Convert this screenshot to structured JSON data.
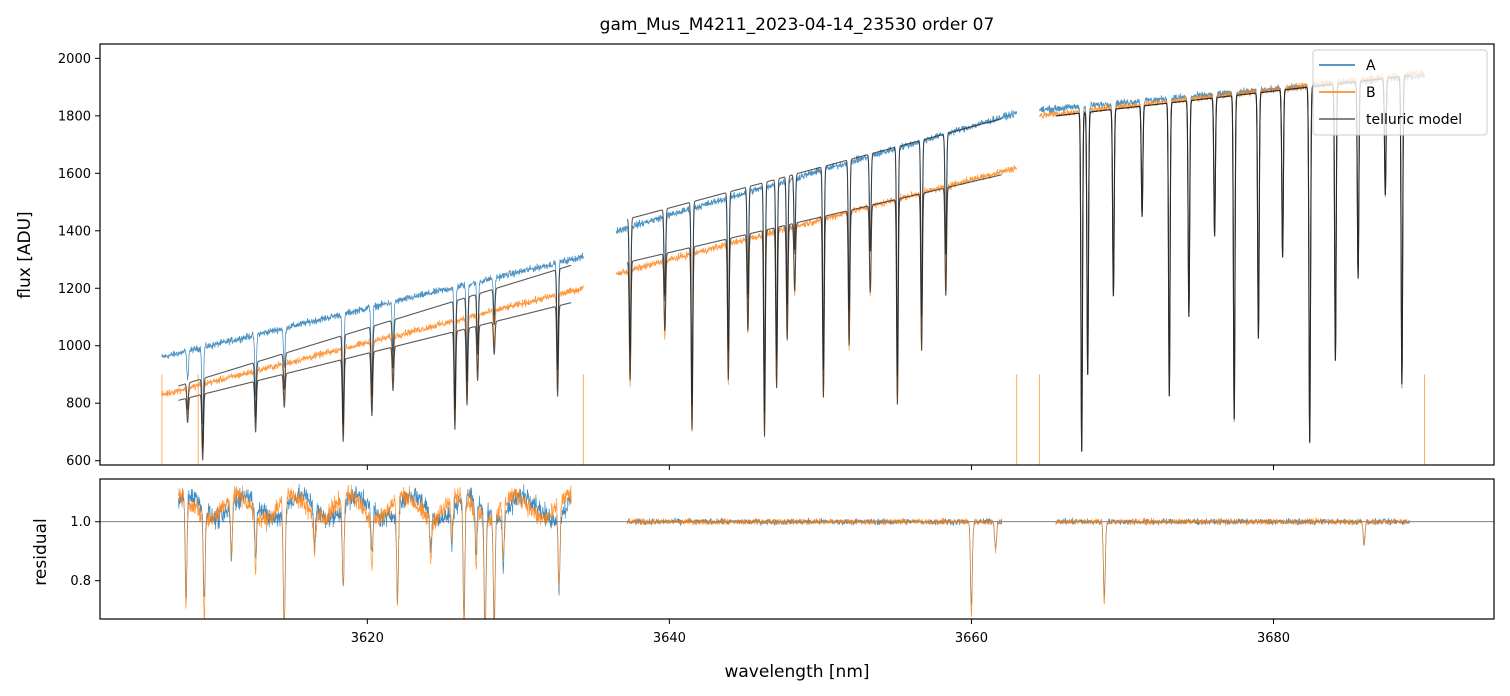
{
  "chart_data": [
    {
      "type": "line",
      "title": "gam_Mus_M4211_2023-04-14_23530  order 07",
      "xlabel": "",
      "ylabel": "flux [ADU]",
      "xlim": [
        3602.3,
        3694.6
      ],
      "ylim": [
        585,
        2050
      ],
      "yticks": [
        600,
        800,
        1000,
        1200,
        1400,
        1600,
        1800,
        2000
      ],
      "yticklabels": [
        "600",
        "800",
        "1000",
        "1200",
        "1400",
        "1600",
        "1800",
        "2000"
      ],
      "xticks": [
        3620,
        3640,
        3660,
        3680
      ],
      "legend": {
        "location": "top-right",
        "entries": [
          {
            "name": "A",
            "color": "#1f77b4"
          },
          {
            "name": "B",
            "color": "#ff7f0e"
          },
          {
            "name": "telluric model",
            "color": "#333333"
          }
        ]
      },
      "segments": [
        {
          "x": [
            3606.4,
            3634.3
          ],
          "A": [
            960,
            1310
          ],
          "B": [
            830,
            1200
          ],
          "model_A": [
            860,
            1280
          ],
          "model_B": [
            810,
            1150
          ],
          "model_range": [
            3607.5,
            3633.5
          ]
        },
        {
          "x": [
            3636.5,
            3663.0
          ],
          "A": [
            1400,
            1810
          ],
          "B": [
            1250,
            1620
          ],
          "model_A": [
            1440,
            1790
          ],
          "model_B": [
            1290,
            1595
          ],
          "model_range": [
            3637.2,
            3662.0
          ]
        },
        {
          "x": [
            3664.5,
            3690.0
          ],
          "A": [
            1820,
            1940
          ],
          "B": [
            1800,
            1950
          ],
          "model_A": [
            1800,
            1940
          ],
          "model_B": [
            1800,
            1940
          ],
          "model_range": [
            3665.6,
            3689.0
          ]
        }
      ],
      "absorption_lines_nm": [
        3608.1,
        3609.1,
        3612.6,
        3614.5,
        3618.4,
        3620.3,
        3621.7,
        3625.8,
        3626.6,
        3627.3,
        3628.4,
        3632.6,
        3637.4,
        3639.7,
        3641.5,
        3643.9,
        3645.2,
        3646.3,
        3647.1,
        3647.8,
        3648.3,
        3650.2,
        3651.9,
        3653.3,
        3655.1,
        3656.7,
        3658.3,
        3667.3,
        3667.7,
        3669.4,
        3671.3,
        3673.1,
        3674.4,
        3676.1,
        3677.4,
        3679.0,
        3680.6,
        3682.4,
        3684.1,
        3685.6,
        3687.4,
        3688.5
      ]
    },
    {
      "type": "line",
      "title": "",
      "xlabel": "wavelength [nm]",
      "ylabel": "residual",
      "xlim": [
        3602.3,
        3694.6
      ],
      "ylim": [
        0.67,
        1.145
      ],
      "yticks": [
        0.8,
        1.0
      ],
      "yticklabels": [
        "0.8",
        "1.0"
      ],
      "xticks": [
        3620,
        3640,
        3660,
        3680
      ],
      "xticklabels": [
        "3620",
        "3640",
        "3660",
        "3680"
      ],
      "reference_line": 1.0,
      "segments": [
        {
          "x": [
            3607.5,
            3633.5
          ],
          "level": 1.05,
          "noise": 0.05
        },
        {
          "x": [
            3637.2,
            3662.0
          ],
          "level": 1.0,
          "noise": 0.015
        },
        {
          "x": [
            3665.6,
            3689.0
          ],
          "level": 1.0,
          "noise": 0.015
        }
      ],
      "dips": [
        {
          "x": 3608.0,
          "depth": 0.37
        },
        {
          "x": 3609.2,
          "depth": 0.35
        },
        {
          "x": 3611.0,
          "depth": 0.2
        },
        {
          "x": 3612.6,
          "depth": 0.2
        },
        {
          "x": 3614.5,
          "depth": 0.45
        },
        {
          "x": 3616.5,
          "depth": 0.13
        },
        {
          "x": 3618.4,
          "depth": 0.3
        },
        {
          "x": 3620.3,
          "depth": 0.17
        },
        {
          "x": 3622.0,
          "depth": 0.35
        },
        {
          "x": 3624.2,
          "depth": 0.14
        },
        {
          "x": 3625.6,
          "depth": 0.14
        },
        {
          "x": 3626.4,
          "depth": 0.45
        },
        {
          "x": 3627.2,
          "depth": 0.2
        },
        {
          "x": 3627.8,
          "depth": 0.45
        },
        {
          "x": 3628.4,
          "depth": 0.4
        },
        {
          "x": 3629.0,
          "depth": 0.18
        },
        {
          "x": 3632.7,
          "depth": 0.28
        },
        {
          "x": 3660.0,
          "depth": 0.32
        },
        {
          "x": 3661.6,
          "depth": 0.1
        },
        {
          "x": 3668.8,
          "depth": 0.28
        },
        {
          "x": 3686.0,
          "depth": 0.08
        }
      ]
    }
  ]
}
